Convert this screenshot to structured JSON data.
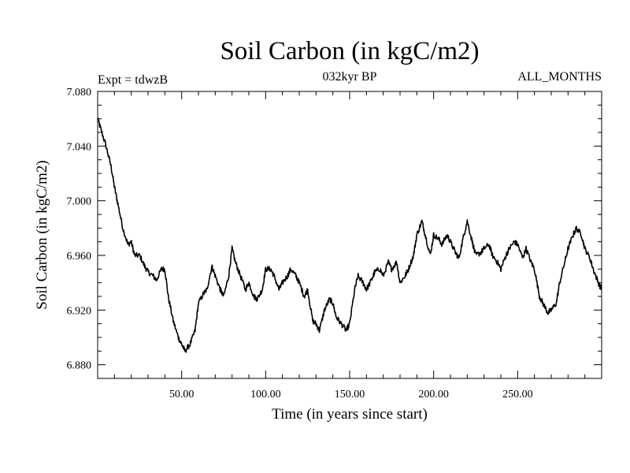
{
  "chart_data": {
    "type": "line",
    "title": "Soil Carbon (in kgC/m2)",
    "subtitle": "032kyr BP",
    "left_annotation": "Expt = tdwzB",
    "right_annotation": "ALL_MONTHS",
    "xlabel": "Time (in years since start)",
    "ylabel": "Soil Carbon (in kgC/m2)",
    "xlim": [
      0,
      300
    ],
    "ylim": [
      6.87,
      7.08
    ],
    "x_ticks": [
      50,
      100,
      150,
      200,
      250
    ],
    "x_tick_labels": [
      "50.00",
      "100.00",
      "150.00",
      "200.00",
      "250.00"
    ],
    "y_ticks": [
      6.88,
      6.92,
      6.96,
      7.0,
      7.04,
      7.08
    ],
    "y_tick_labels": [
      "6.880",
      "6.920",
      "6.960",
      "7.000",
      "7.040",
      "7.080"
    ],
    "grid": false,
    "series": [
      {
        "name": "Soil Carbon",
        "color": "#000000",
        "x": [
          0,
          2,
          5,
          8,
          10,
          12,
          15,
          18,
          20,
          22,
          25,
          28,
          30,
          33,
          35,
          38,
          40,
          42,
          45,
          48,
          50,
          52,
          55,
          58,
          60,
          63,
          65,
          68,
          70,
          73,
          75,
          78,
          80,
          82,
          85,
          88,
          90,
          93,
          95,
          98,
          100,
          103,
          105,
          108,
          110,
          113,
          115,
          118,
          120,
          123,
          125,
          128,
          130,
          132,
          135,
          138,
          140,
          142,
          145,
          148,
          150,
          153,
          155,
          158,
          160,
          163,
          165,
          168,
          170,
          173,
          175,
          178,
          180,
          183,
          185,
          188,
          190,
          193,
          195,
          198,
          200,
          203,
          205,
          208,
          210,
          213,
          215,
          218,
          220,
          223,
          225,
          228,
          230,
          233,
          235,
          238,
          240,
          243,
          245,
          248,
          250,
          253,
          255,
          258,
          260,
          263,
          265,
          268,
          270,
          273,
          275,
          278,
          280,
          283,
          285,
          288,
          290,
          293,
          295,
          298,
          300
        ],
        "values": [
          7.06,
          7.052,
          7.04,
          7.025,
          7.01,
          6.998,
          6.98,
          6.968,
          6.97,
          6.96,
          6.96,
          6.952,
          6.948,
          6.945,
          6.942,
          6.95,
          6.95,
          6.93,
          6.912,
          6.9,
          6.895,
          6.89,
          6.895,
          6.905,
          6.925,
          6.932,
          6.935,
          6.952,
          6.945,
          6.935,
          6.93,
          6.945,
          6.965,
          6.955,
          6.945,
          6.935,
          6.94,
          6.93,
          6.928,
          6.935,
          6.95,
          6.95,
          6.945,
          6.935,
          6.94,
          6.945,
          6.95,
          6.945,
          6.94,
          6.93,
          6.935,
          6.912,
          6.91,
          6.905,
          6.92,
          6.928,
          6.925,
          6.915,
          6.91,
          6.905,
          6.91,
          6.935,
          6.945,
          6.94,
          6.935,
          6.942,
          6.948,
          6.95,
          6.945,
          6.955,
          6.95,
          6.955,
          6.94,
          6.945,
          6.95,
          6.96,
          6.975,
          6.985,
          6.975,
          6.96,
          6.975,
          6.972,
          6.968,
          6.975,
          6.97,
          6.962,
          6.958,
          6.975,
          6.985,
          6.97,
          6.96,
          6.962,
          6.965,
          6.968,
          6.96,
          6.955,
          6.95,
          6.96,
          6.965,
          6.97,
          6.968,
          6.958,
          6.965,
          6.955,
          6.95,
          6.93,
          6.925,
          6.918,
          6.92,
          6.925,
          6.94,
          6.955,
          6.965,
          6.975,
          6.98,
          6.975,
          6.965,
          6.958,
          6.95,
          6.94,
          6.935
        ]
      }
    ]
  }
}
